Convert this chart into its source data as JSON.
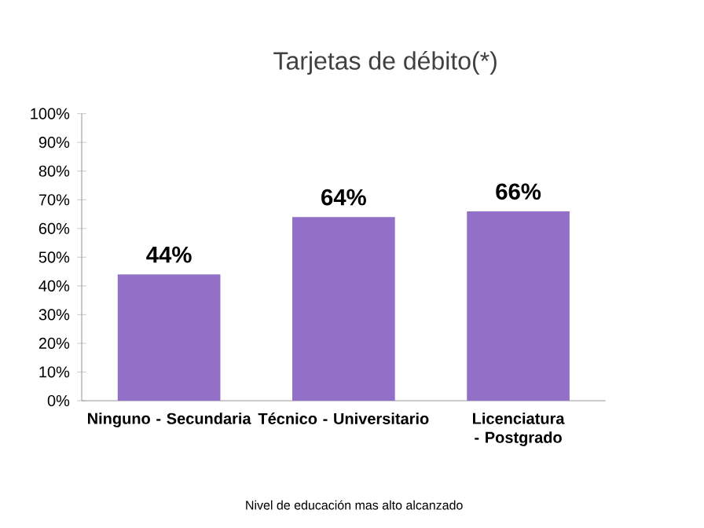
{
  "chart_data": {
    "type": "bar",
    "title": "Tarjetas de débito(*)",
    "xlabel": "Nivel de educación mas alto alcanzado",
    "categories": [
      "Ninguno - Secundaria",
      "Técnico - Universitario",
      "Licenciatura - Postgrado"
    ],
    "values": [
      44,
      64,
      66
    ],
    "value_labels": [
      "44%",
      "64%",
      "66%"
    ],
    "color": "#9370c8",
    "ylim": [
      0,
      100
    ],
    "yticks": [
      {
        "value": 0,
        "label": "0%"
      },
      {
        "value": 10,
        "label": "10%"
      },
      {
        "value": 20,
        "label": "20%"
      },
      {
        "value": 30,
        "label": "30%"
      },
      {
        "value": 40,
        "label": "40%"
      },
      {
        "value": 50,
        "label": "50%"
      },
      {
        "value": 60,
        "label": "60%"
      },
      {
        "value": 70,
        "label": "70%"
      },
      {
        "value": 80,
        "label": "80%"
      },
      {
        "value": 90,
        "label": "90%"
      },
      {
        "value": 100,
        "label": "100%"
      }
    ],
    "grid": false
  }
}
